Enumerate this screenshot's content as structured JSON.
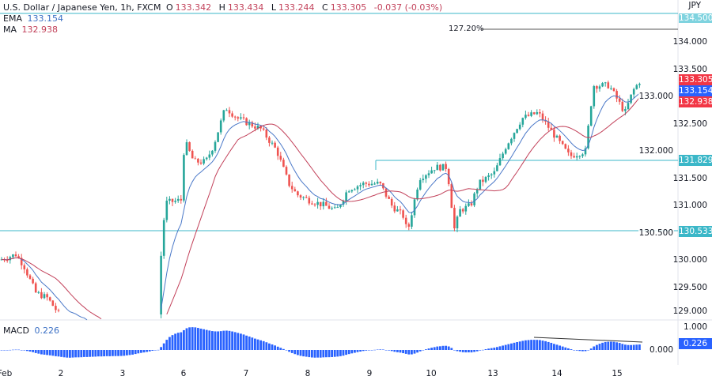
{
  "header": {
    "symbol": "U.S. Dollar / Japanese Yen, 1h, FXCM",
    "open_label": "O",
    "open": "133.342",
    "high_label": "H",
    "high": "133.434",
    "low_label": "L",
    "low": "133.244",
    "close_label": "C",
    "close": "133.305",
    "change": "-0.037 (-0.03%)"
  },
  "indicators": {
    "ema_label": "EMA",
    "ema": "133.154",
    "ma_label": "MA",
    "ma": "132.938",
    "macd_label": "MACD",
    "macd": "0.226"
  },
  "axis": {
    "currency": "JPY",
    "price_ticks": [
      "134.000",
      "133.500",
      "133.000",
      "132.500",
      "132.000",
      "131.500",
      "131.000",
      "130.500",
      "130.000",
      "129.500",
      "129.000"
    ],
    "macd_ticks": [
      "1.000",
      "0.000"
    ],
    "time_ticks": [
      "Feb",
      "2",
      "3",
      "6",
      "7",
      "8",
      "9",
      "10",
      "13",
      "14",
      "15"
    ]
  },
  "tags": {
    "top_level": "134.500",
    "last": "133.305",
    "ema": "133.154",
    "ma": "132.938",
    "level_1": "131.829",
    "level_2": "130.533",
    "macd": "0.226"
  },
  "fib_label": "127.20%",
  "colors": {
    "up": "#26a69a",
    "down": "#ef5350",
    "ema": "#4a78c8",
    "ma": "#c2415a",
    "level": "#3bb7c8",
    "macd": "#2962ff"
  },
  "chart_data": {
    "type": "candlestick",
    "note_price_path_anchors": [
      130.0,
      130.1,
      129.9,
      129.4,
      129.3,
      128.9,
      128.9,
      128.5,
      129.0,
      130.5,
      131.05,
      131.1,
      132.2,
      131.8,
      131.8,
      132.1,
      132.8,
      132.6,
      132.5,
      132.4,
      132.0,
      131.4,
      131.2,
      131.1,
      131.0,
      130.9,
      131.3,
      131.4,
      131.4,
      131.0,
      130.8,
      130.5,
      131.5,
      131.7,
      131.7,
      130.5,
      130.9,
      131.0,
      131.4,
      131.6,
      132.1,
      132.6,
      132.7,
      132.3,
      131.9,
      132.0,
      133.2,
      133.2,
      132.7,
      133.1,
      133.305
    ],
    "horizontal_levels": [
      134.5,
      131.829,
      130.533
    ]
  }
}
